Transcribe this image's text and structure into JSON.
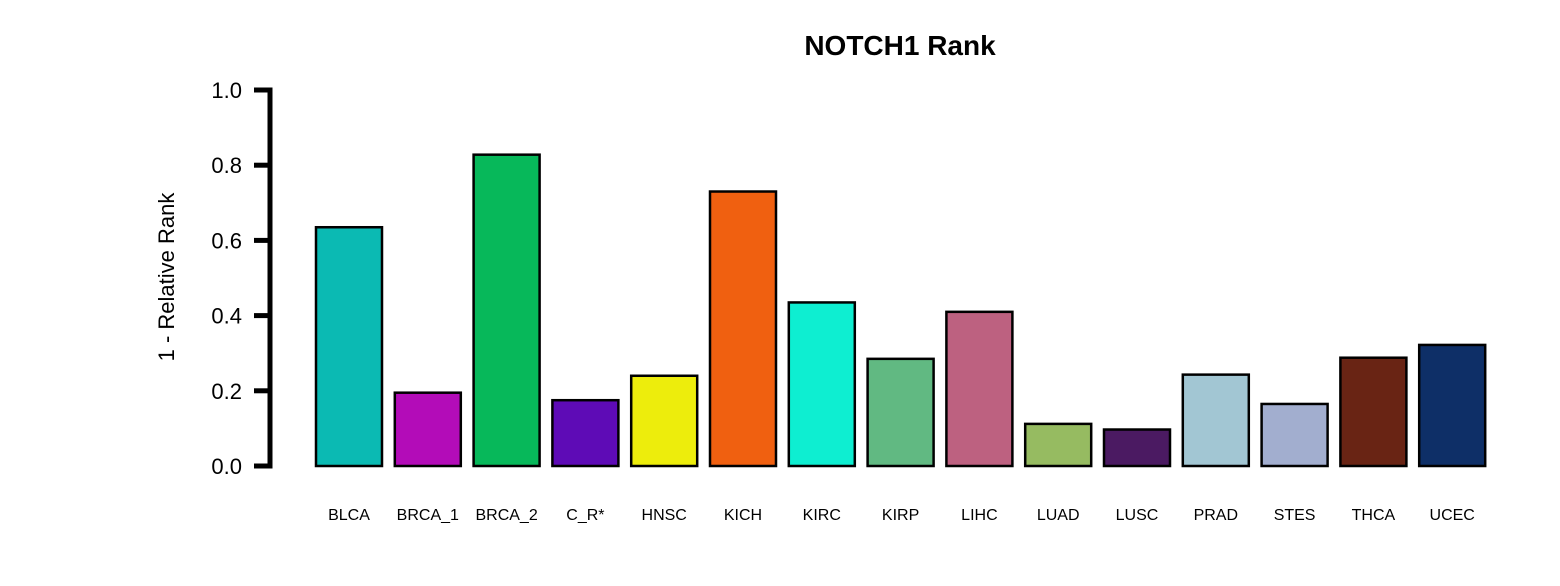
{
  "chart_data": {
    "type": "bar",
    "title": "NOTCH1 Rank",
    "xlabel": "",
    "ylabel": "1 - Relative Rank",
    "ylim": [
      0,
      1.0
    ],
    "yticks": [
      "0.0",
      "0.2",
      "0.4",
      "0.6",
      "0.8",
      "1.0"
    ],
    "grid": false,
    "legend": "none",
    "categories": [
      "BLCA",
      "BRCA_1",
      "BRCA_2",
      "C_R*",
      "HNSC",
      "KICH",
      "KIRC",
      "KIRP",
      "LIHC",
      "LUAD",
      "LUSC",
      "PRAD",
      "STES",
      "THCA",
      "UCEC"
    ],
    "values": [
      0.635,
      0.195,
      0.828,
      0.175,
      0.24,
      0.73,
      0.435,
      0.285,
      0.41,
      0.112,
      0.097,
      0.243,
      0.165,
      0.288,
      0.322
    ],
    "colors": [
      "#0BBAB3",
      "#B30CB8",
      "#07B85A",
      "#5E0BB6",
      "#EDED0C",
      "#F06010",
      "#0EEED1",
      "#61B982",
      "#BD6180",
      "#96BB61",
      "#4B1A62",
      "#A2C6D3",
      "#A2AECF",
      "#692414",
      "#0E2F67"
    ]
  }
}
